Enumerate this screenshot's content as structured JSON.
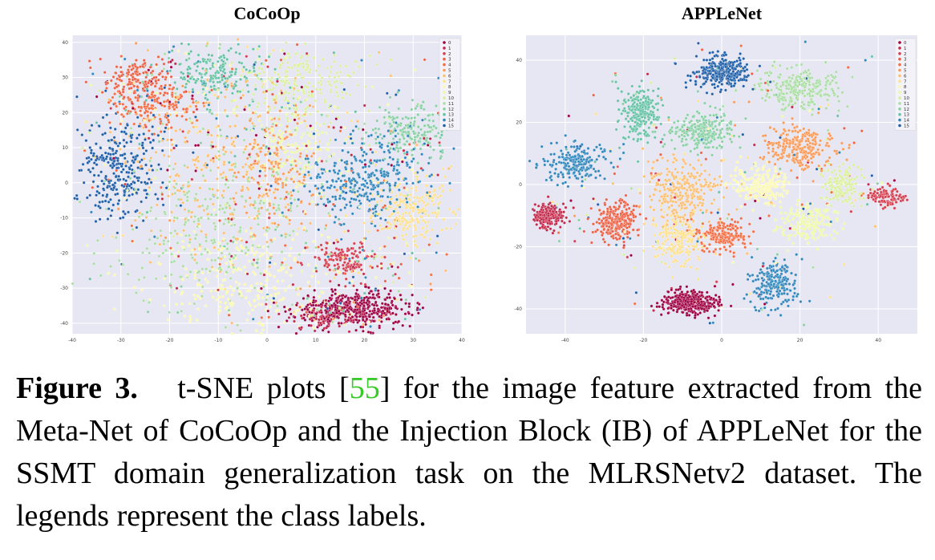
{
  "figure": {
    "panels": [
      {
        "title": "CoCoOp"
      },
      {
        "title": "APPLeNet"
      }
    ],
    "caption": {
      "label": "Figure 3.",
      "text_before": "t-SNE plots [",
      "citation": "55",
      "text_after": "] for the image feature extracted from the Meta-Net of CoCoOp and the Injection Block (IB) of APPLeNet for the SSMT domain generalization task on the MLRSNetv2 dataset. The legends represent the class labels."
    }
  },
  "chart_data": [
    {
      "type": "scatter",
      "title": "CoCoOp",
      "xlim": [
        -40,
        40
      ],
      "ylim": [
        -43,
        42
      ],
      "xticks": [
        -40,
        -30,
        -20,
        -10,
        0,
        10,
        20,
        30,
        40
      ],
      "yticks": [
        40,
        30,
        20,
        10,
        0,
        -10,
        -20,
        -30,
        -40
      ],
      "grid": true,
      "legend": "top-right",
      "legend_labels": [
        "0",
        "1",
        "2",
        "3",
        "4",
        "5",
        "6",
        "7",
        "8",
        "9",
        "10",
        "11",
        "12",
        "13",
        "14",
        "15"
      ],
      "colors": [
        "#9e0142",
        "#c2294a",
        "#d53e4f",
        "#ec6145",
        "#f46d43",
        "#fa9a58",
        "#fdbf6f",
        "#fee08b",
        "#fbf8b0",
        "#eef8a6",
        "#d9ef9b",
        "#abdda4",
        "#88d0a4",
        "#66c2a5",
        "#3288bd",
        "#1f5fa8"
      ],
      "clusters": [
        {
          "label": 0,
          "cx": 18,
          "cy": -36,
          "sx": 6,
          "sy": 2.5,
          "n": 420
        },
        {
          "label": 1,
          "cx": 12,
          "cy": -38,
          "sx": 3,
          "sy": 2,
          "n": 80
        },
        {
          "label": 2,
          "cx": 16,
          "cy": -22,
          "sx": 3.5,
          "sy": 2.5,
          "n": 130
        },
        {
          "label": 3,
          "cx": -26,
          "cy": 30,
          "sx": 3.5,
          "sy": 3,
          "n": 150
        },
        {
          "label": 4,
          "cx": -23,
          "cy": 22,
          "sx": 4,
          "sy": 3,
          "n": 140
        },
        {
          "label": 5,
          "cx": 2,
          "cy": 3,
          "sx": 4,
          "sy": 8,
          "n": 160
        },
        {
          "label": 6,
          "cx": -10,
          "cy": 5,
          "sx": 10,
          "sy": 14,
          "n": 260
        },
        {
          "label": 7,
          "cx": 30,
          "cy": -8,
          "sx": 4.5,
          "sy": 5,
          "n": 220
        },
        {
          "label": 8,
          "cx": -5,
          "cy": -28,
          "sx": 9,
          "sy": 7,
          "n": 260
        },
        {
          "label": 9,
          "cx": 5,
          "cy": 10,
          "sx": 4,
          "sy": 6,
          "n": 150
        },
        {
          "label": 10,
          "cx": 7,
          "cy": 28,
          "sx": 6,
          "sy": 5,
          "n": 220
        },
        {
          "label": 11,
          "cx": -12,
          "cy": -12,
          "sx": 10,
          "sy": 12,
          "n": 300
        },
        {
          "label": 12,
          "cx": 30,
          "cy": 15,
          "sx": 4,
          "sy": 4,
          "n": 180
        },
        {
          "label": 13,
          "cx": -10,
          "cy": 31,
          "sx": 4.5,
          "sy": 3.5,
          "n": 180
        },
        {
          "label": 14,
          "cx": 20,
          "cy": 1,
          "sx": 6,
          "sy": 6,
          "n": 320
        },
        {
          "label": 15,
          "cx": -30,
          "cy": 4,
          "sx": 4.5,
          "sy": 7,
          "n": 300
        }
      ]
    },
    {
      "type": "scatter",
      "title": "APPLeNet",
      "xlim": [
        -50,
        50
      ],
      "ylim": [
        -48,
        48
      ],
      "xticks": [
        -40,
        -20,
        0,
        20,
        40
      ],
      "yticks": [
        40,
        20,
        0,
        -20,
        -40
      ],
      "grid": true,
      "legend": "top-right",
      "legend_labels": [
        "0",
        "1",
        "2",
        "3",
        "4",
        "5",
        "6",
        "7",
        "8",
        "9",
        "10",
        "11",
        "12",
        "13",
        "14",
        "15"
      ],
      "colors": [
        "#9e0142",
        "#c2294a",
        "#d53e4f",
        "#ec6145",
        "#f46d43",
        "#fa9a58",
        "#fdbf6f",
        "#fee08b",
        "#fbf8b0",
        "#eef8a6",
        "#d9ef9b",
        "#abdda4",
        "#88d0a4",
        "#66c2a5",
        "#3288bd",
        "#1f5fa8"
      ],
      "clusters": [
        {
          "label": 0,
          "cx": -8,
          "cy": -38,
          "sx": 3.5,
          "sy": 1.8,
          "n": 380
        },
        {
          "label": 1,
          "cx": -44,
          "cy": -10,
          "sx": 2,
          "sy": 2,
          "n": 200
        },
        {
          "label": 2,
          "cx": 42,
          "cy": -4,
          "sx": 2,
          "sy": 1.5,
          "n": 100
        },
        {
          "label": 3,
          "cx": -27,
          "cy": -12,
          "sx": 2.5,
          "sy": 3,
          "n": 260
        },
        {
          "label": 4,
          "cx": 0,
          "cy": -16,
          "sx": 3,
          "sy": 3,
          "n": 180
        },
        {
          "label": 5,
          "cx": 20,
          "cy": 12,
          "sx": 4.5,
          "sy": 3.5,
          "n": 240
        },
        {
          "label": 6,
          "cx": -10,
          "cy": -2,
          "sx": 4.5,
          "sy": 5,
          "n": 280
        },
        {
          "label": 7,
          "cx": -11,
          "cy": -18,
          "sx": 3,
          "sy": 4,
          "n": 200
        },
        {
          "label": 8,
          "cx": 10,
          "cy": 0,
          "sx": 3.5,
          "sy": 3,
          "n": 220
        },
        {
          "label": 9,
          "cx": 22,
          "cy": -12,
          "sx": 3.5,
          "sy": 3.5,
          "n": 200
        },
        {
          "label": 10,
          "cx": 31,
          "cy": 0,
          "sx": 2.5,
          "sy": 3,
          "n": 140
        },
        {
          "label": 11,
          "cx": 20,
          "cy": 31,
          "sx": 5,
          "sy": 3,
          "n": 260
        },
        {
          "label": 12,
          "cx": -5,
          "cy": 17,
          "sx": 4,
          "sy": 3,
          "n": 240
        },
        {
          "label": 13,
          "cx": -21,
          "cy": 23,
          "sx": 2.5,
          "sy": 4,
          "n": 240
        },
        {
          "label": 14,
          "cx": -38,
          "cy": 7,
          "sx": 4,
          "sy": 3,
          "n": 200
        },
        {
          "label": 15,
          "cx": 0,
          "cy": 36,
          "sx": 3.5,
          "sy": 2.5,
          "n": 320
        },
        {
          "label": 14,
          "cx": 14,
          "cy": -32,
          "sx": 3,
          "sy": 3.5,
          "n": 220
        }
      ]
    }
  ]
}
